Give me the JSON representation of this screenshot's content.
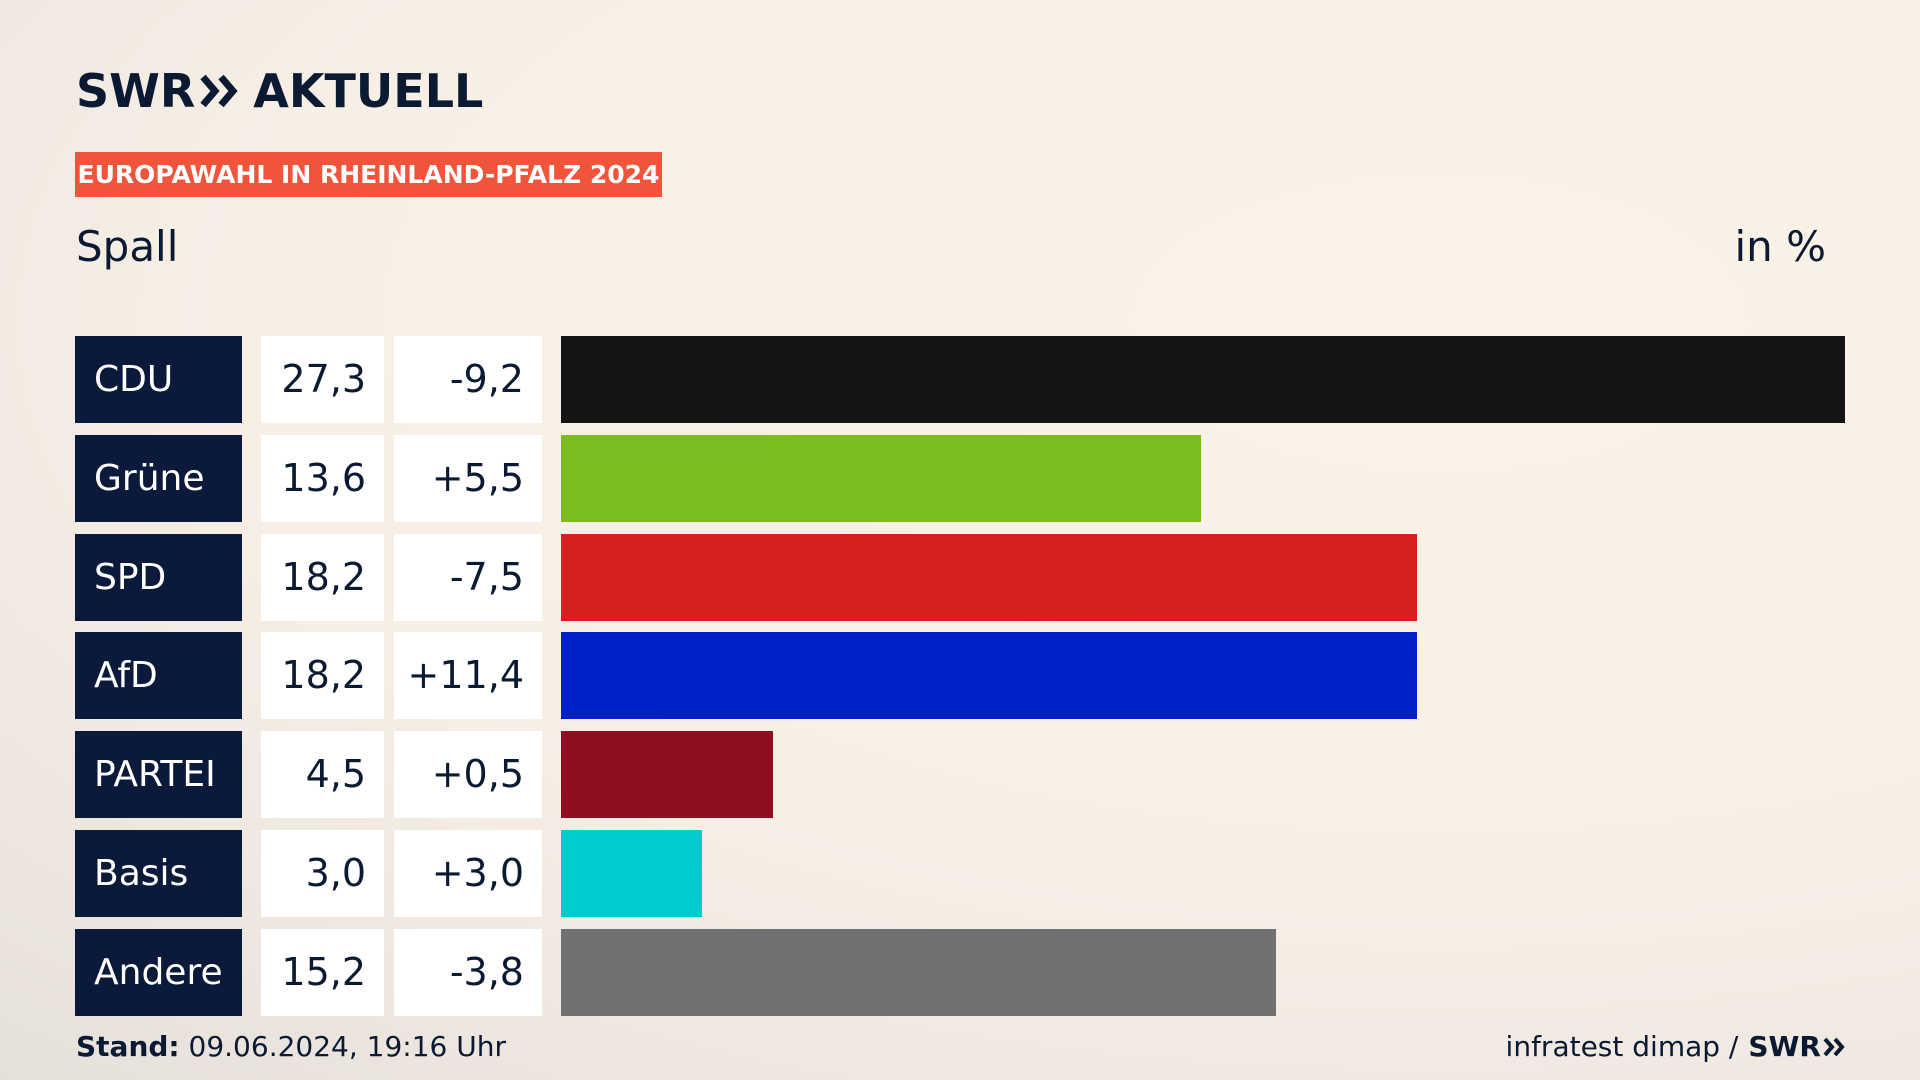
{
  "brand": {
    "name_left": "SWR",
    "name_right": "AKTUELL"
  },
  "badge": "EUROPAWAHL IN RHEINLAND-PFALZ 2024",
  "subtitle": "Spall",
  "unit": "in %",
  "footer": {
    "stand_label": "Stand:",
    "stand_value": "09.06.2024, 19:16 Uhr",
    "source": "infratest dimap /",
    "source_brand": "SWR"
  },
  "chart_data": {
    "type": "bar",
    "orientation": "horizontal",
    "categories": [
      "CDU",
      "Grüne",
      "SPD",
      "AfD",
      "PARTEI",
      "Basis",
      "Andere"
    ],
    "values": [
      27.3,
      13.6,
      18.2,
      18.2,
      4.5,
      3.0,
      15.2
    ],
    "value_labels": [
      "27,3",
      "13,6",
      "18,2",
      "18,2",
      "4,5",
      "3,0",
      "15,2"
    ],
    "diff_labels": [
      "-9,2",
      "+5,5",
      "-7,5",
      "+11,4",
      "+0,5",
      "+3,0",
      "-3,8"
    ],
    "colors": [
      "#141414",
      "#7abe1e",
      "#d71f1f",
      "#0020c8",
      "#8e0e22",
      "#00ccd0",
      "#707173"
    ],
    "xlim": [
      0,
      27.3
    ]
  }
}
